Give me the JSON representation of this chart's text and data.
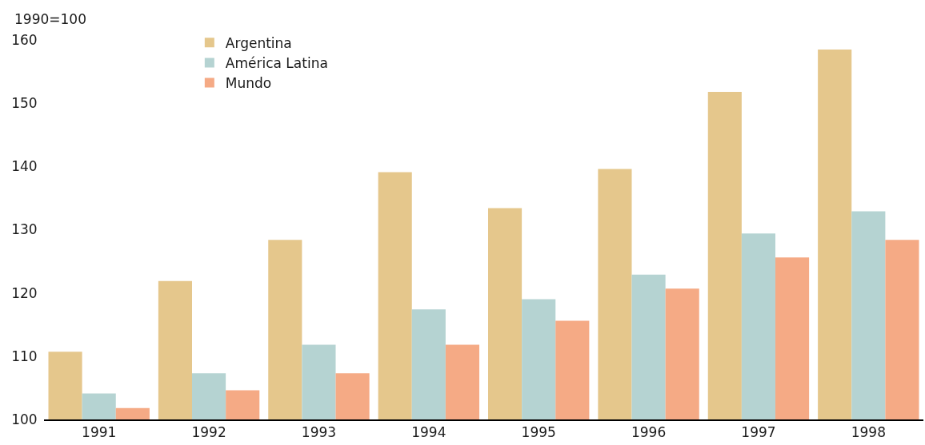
{
  "chart_data": {
    "type": "bar",
    "ylabel": "1990=100",
    "categories": [
      "1991",
      "1992",
      "1993",
      "1994",
      "1995",
      "1996",
      "1997",
      "1998"
    ],
    "series": [
      {
        "name": "Argentina",
        "color": "#e5c78c",
        "values": [
          110.7,
          121.9,
          128.4,
          139.1,
          133.4,
          139.6,
          151.8,
          158.5
        ]
      },
      {
        "name": "América Latina",
        "color": "#b5d3d2",
        "values": [
          104.1,
          107.3,
          111.8,
          117.4,
          119.0,
          122.9,
          129.4,
          132.9
        ]
      },
      {
        "name": "Mundo",
        "color": "#f5aa85",
        "values": [
          101.8,
          104.6,
          107.3,
          111.8,
          115.6,
          120.7,
          125.6,
          128.4
        ]
      }
    ],
    "ylim": [
      100,
      160
    ],
    "yticks": [
      100,
      110,
      120,
      130,
      140,
      150,
      160
    ],
    "grid": false,
    "legend": "top left"
  }
}
